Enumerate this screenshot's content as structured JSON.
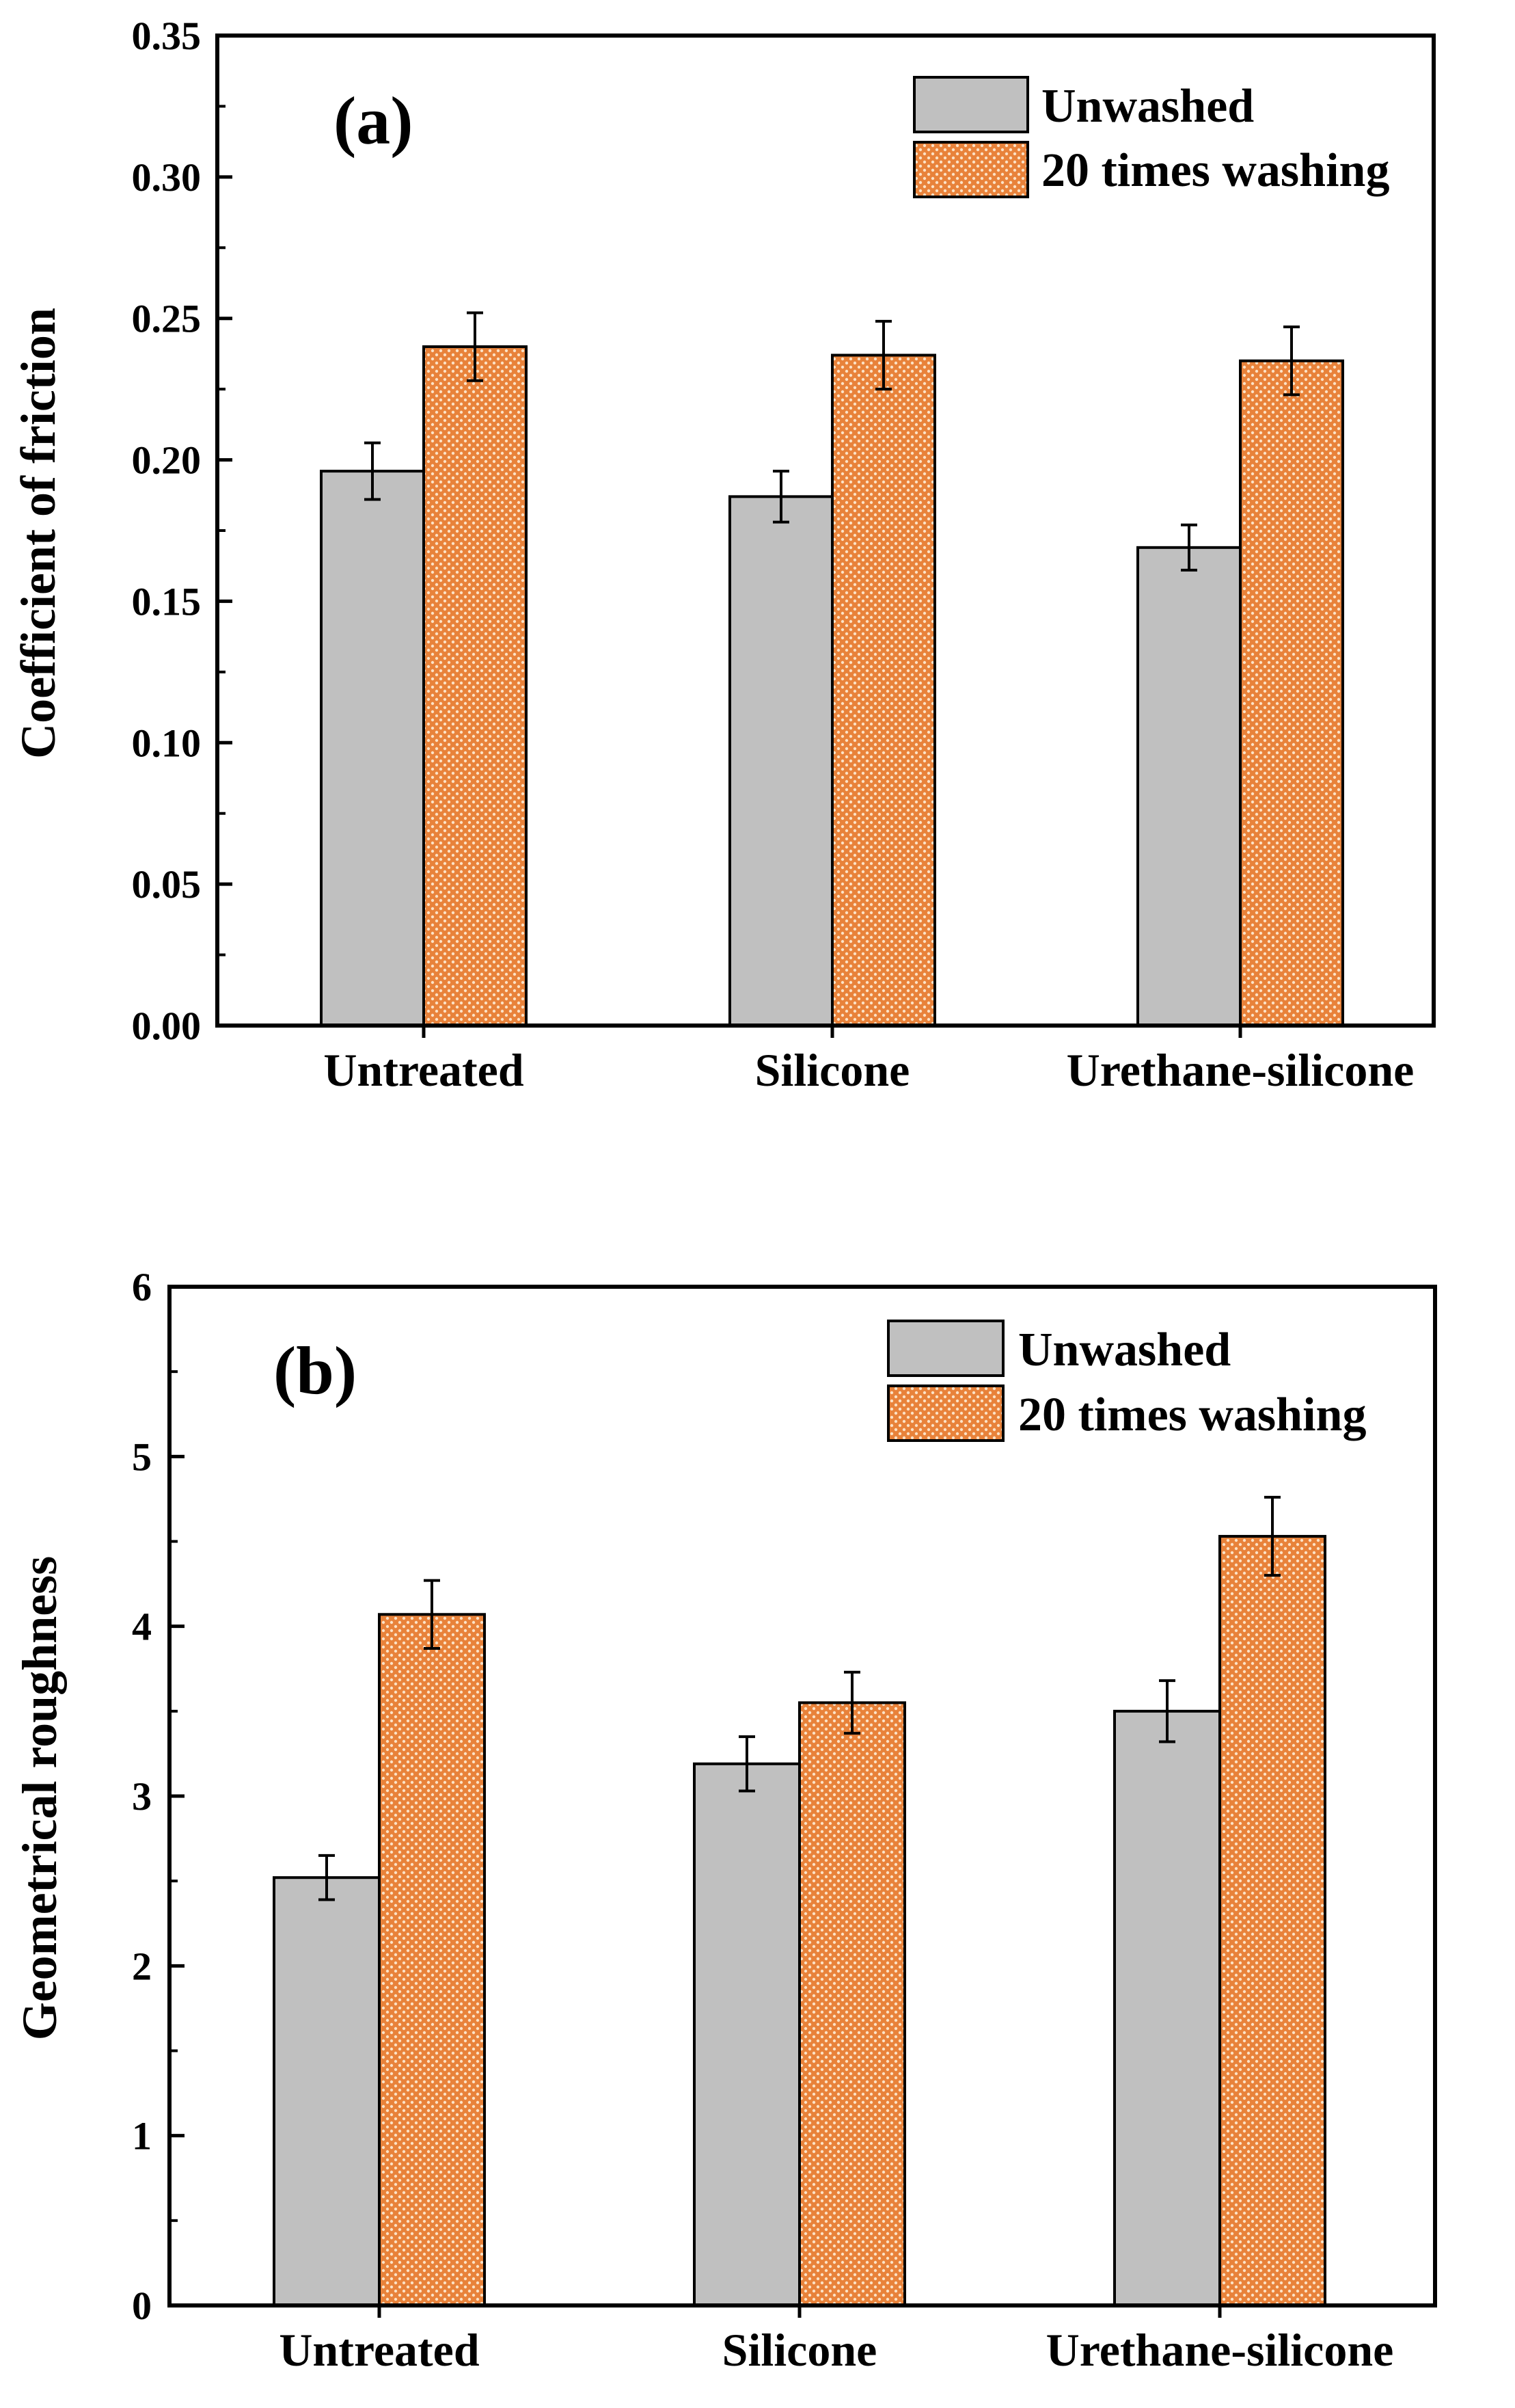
{
  "figure": "coefficient-of-friction-and-geometrical-roughness",
  "colors": {
    "unwashed": "#c0c0c0",
    "washed_base": "#e8823a",
    "washed_dot": "#fbe2c6",
    "axis": "#000000"
  },
  "chart_data": [
    {
      "type": "bar",
      "panel_label": "(a)",
      "title": "",
      "xlabel": "",
      "ylabel": "Coefficient of friction",
      "ylim": [
        0,
        0.35
      ],
      "yticks": [
        "0.00",
        "0.05",
        "0.10",
        "0.15",
        "0.20",
        "0.25",
        "0.30",
        "0.35"
      ],
      "yticks_values": [
        0,
        0.05,
        0.1,
        0.15,
        0.2,
        0.25,
        0.3,
        0.35
      ],
      "minor_tick_step": 0.025,
      "categories": [
        "Untreated",
        "Silicone",
        "Urethane-silicone"
      ],
      "legend_position": "top-right",
      "series": [
        {
          "name": "Unwashed",
          "values": [
            0.196,
            0.187,
            0.169
          ],
          "errors": [
            0.01,
            0.009,
            0.008
          ]
        },
        {
          "name": "20 times washing",
          "values": [
            0.24,
            0.237,
            0.235
          ],
          "errors": [
            0.012,
            0.012,
            0.012
          ]
        }
      ]
    },
    {
      "type": "bar",
      "panel_label": "(b)",
      "title": "",
      "xlabel": "",
      "ylabel": "Geometrical roughness",
      "ylim": [
        0,
        6
      ],
      "yticks": [
        "0",
        "1",
        "2",
        "3",
        "4",
        "5",
        "6"
      ],
      "yticks_values": [
        0,
        1,
        2,
        3,
        4,
        5,
        6
      ],
      "minor_tick_step": 0.5,
      "categories": [
        "Untreated",
        "Silicone",
        "Urethane-silicone"
      ],
      "legend_position": "top-right",
      "series": [
        {
          "name": "Unwashed",
          "values": [
            2.52,
            3.19,
            3.5
          ],
          "errors": [
            0.13,
            0.16,
            0.18
          ]
        },
        {
          "name": "20 times washing",
          "values": [
            4.07,
            3.55,
            4.53
          ],
          "errors": [
            0.2,
            0.18,
            0.23
          ]
        }
      ]
    }
  ]
}
